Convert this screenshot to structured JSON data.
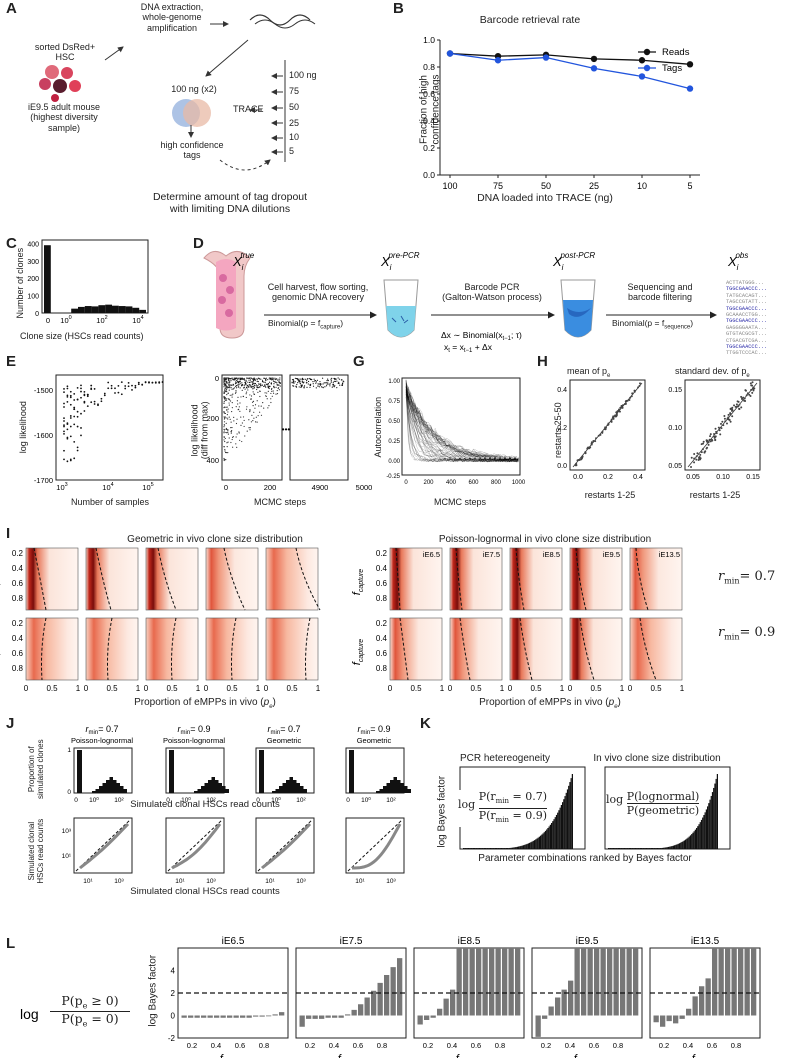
{
  "panels": {
    "A": "A",
    "B": "B",
    "C": "C",
    "D": "D",
    "E": "E",
    "F": "F",
    "G": "G",
    "H": "H",
    "I": "I",
    "J": "J",
    "K": "K",
    "L": "L"
  },
  "A": {
    "sorted": "sorted DsRed+\nHSC",
    "dna": "DNA extraction,\nwhole-genome\namplification",
    "mouse": "iE9.5 adult mouse\n(highest diversity\nsample)",
    "ng100": "100 ng (x2)",
    "trace": "TRACE",
    "hct": "high confidence\ntags",
    "amounts": [
      "100 ng",
      "75",
      "50",
      "25",
      "10",
      "5"
    ],
    "caption": "Determine amount of tag dropout\nwith limiting DNA dilutions"
  },
  "C": {
    "ylabel": "Number of clones",
    "xlabel": "Clone size (HSCs read counts)"
  },
  "D": {
    "step1": "Cell harvest, flow sorting,\ngenomic DNA recovery",
    "binom1": "Binomial(p = f",
    "step2": "Barcode PCR\n(Galton-Watson process)",
    "step3": "Sequencing and\nbarcode filtering",
    "binom3": "Binomial(p = f",
    "seqs": [
      "ACTTATGGG...",
      "TGGCGAACCC...",
      "TATGCACAGT...",
      "TAGCCGTATT...",
      "TGGCGAACCC...",
      "GCAAACCTGG...",
      "TGGCGAACCC...",
      "GAGGGGAATA...",
      "GTGTACGCGT...",
      "CTGACGTCGA...",
      "TGGCGAACCC...",
      "TTGGTCCCAC..."
    ]
  },
  "E": {
    "ylabel": "log likelihood",
    "xlabel": "Number of samples"
  },
  "F": {
    "ylabel": "log likelihood\n(diff from max)",
    "xlabel": "MCMC steps"
  },
  "G": {
    "ylabel": "Autocorrelation",
    "xlabel": "MCMC steps"
  },
  "H": {
    "title1": "mean of  p",
    "title2": "standard dev. of  p",
    "ylabel": "restarts 25-50",
    "xlabel": "restarts 1-25"
  },
  "I": {
    "title_left": "Geometric in vivo clone size distribution",
    "title_right": "Poisson-lognormal in vivo clone size distribution",
    "stages": [
      "iE6.5",
      "iE7.5",
      "iE8.5",
      "iE9.5",
      "iE13.5"
    ],
    "xlabel": "Proportion of eMPPs in vivo",
    "rmin1": "= 0.7",
    "rmin2": "= 0.9"
  },
  "J": {
    "titles": [
      [
        "= 0.7",
        "Poisson-lognormal"
      ],
      [
        "= 0.9",
        "Poisson-lognormal"
      ],
      [
        "= 0.7",
        "Geometric"
      ],
      [
        "= 0.9",
        "Geometric"
      ]
    ],
    "ylabel_top": "Proportion of\nsimulated clones",
    "xlabel_top": "Simulated clonal HSCs read counts",
    "ylabel_bot": "Simulated clonal\nHSCs read counts",
    "xlabel_bot": "Simulated clonal HSCs read counts"
  },
  "K": {
    "title1": "PCR hetereogeneity",
    "title2": "In vivo clone size distribution",
    "ylabel": "log Bayes factor",
    "xlabel": "Parameter combinations ranked by Bayes factor",
    "frac1_num": "P(r",
    "frac1_num_tail": " = 0.7)",
    "frac1_den": "P(r",
    "frac1_den_tail": " = 0.9)",
    "frac2_num": "P(lognormal)",
    "frac2_den": "P(geometric)"
  },
  "L": {
    "titles": [
      "iE6.5",
      "iE7.5",
      "iE8.5",
      "iE9.5",
      "iE13.5"
    ],
    "ylabel": "log Bayes factor",
    "eq_num": "P(p",
    "eq_num_tail": " ≥ 0)",
    "eq_den": "P(p",
    "eq_den_tail": " = 0)"
  },
  "chart_data": [
    {
      "type": "line",
      "title": "Barcode retrieval rate",
      "xlabel": "DNA loaded into TRACE (ng)",
      "ylabel": "Fraction of high\nconfidence tags",
      "categories": [
        "100",
        "75",
        "50",
        "25",
        "10",
        "5"
      ],
      "ylim": [
        0,
        1.0
      ],
      "yticks": [
        "0.0",
        "0.2",
        "0.4",
        "0.6",
        "0.8",
        "1.0"
      ],
      "legend": "top-right",
      "series": [
        {
          "name": "Reads",
          "color": "#111111",
          "values": [
            0.9,
            0.88,
            0.89,
            0.86,
            0.85,
            0.82
          ]
        },
        {
          "name": "Tags",
          "color": "#2255dd",
          "values": [
            0.9,
            0.85,
            0.87,
            0.79,
            0.73,
            0.64
          ]
        }
      ]
    },
    {
      "type": "bar",
      "xticks": [
        "0",
        "10",
        "10",
        "10"
      ],
      "xexp": [
        "",
        "0",
        "2",
        "4"
      ],
      "yticks": [
        "0",
        "100",
        "200",
        "300",
        "400"
      ],
      "ylim": [
        0,
        420
      ],
      "values": [
        390,
        0,
        0,
        0,
        25,
        35,
        40,
        38,
        45,
        48,
        42,
        40,
        38,
        30,
        18
      ]
    },
    {
      "type": "bar",
      "title": "",
      "ylabel": "log Bayes factor",
      "ylim": [
        -2,
        6
      ],
      "yticks": [
        "-2",
        "0",
        "2",
        "4"
      ],
      "xticks": [
        "0.2",
        "0.4",
        "0.6",
        "0.8"
      ],
      "threshold": 2,
      "series": [
        {
          "name": "iE6.5",
          "values": [
            -0.2,
            -0.2,
            -0.2,
            -0.2,
            -0.2,
            -0.2,
            -0.2,
            -0.2,
            -0.2,
            -0.2,
            -0.2,
            -0.1,
            -0.1,
            0,
            0.1,
            0.3
          ]
        },
        {
          "name": "iE7.5",
          "values": [
            -1.0,
            -0.3,
            -0.3,
            -0.3,
            -0.2,
            -0.2,
            -0.2,
            0.1,
            0.5,
            1.0,
            1.6,
            2.2,
            2.9,
            3.6,
            4.3,
            5.1
          ]
        },
        {
          "name": "iE8.5",
          "values": [
            -0.8,
            -0.4,
            -0.2,
            0.6,
            1.5,
            2.3,
            6.0,
            6.0,
            6.0,
            6.0,
            6.0,
            6.0,
            6.0,
            6.0,
            6.0,
            6.0
          ]
        },
        {
          "name": "iE9.5",
          "values": [
            -1.9,
            -0.3,
            0.8,
            1.6,
            2.3,
            3.1,
            6.0,
            6.0,
            6.0,
            6.0,
            6.0,
            6.0,
            6.0,
            6.0,
            6.0,
            6.0
          ]
        },
        {
          "name": "iE13.5",
          "values": [
            -0.6,
            -1.0,
            -0.5,
            -0.7,
            -0.3,
            0.6,
            1.7,
            2.6,
            3.3,
            6.0,
            6.0,
            6.0,
            6.0,
            6.0,
            6.0,
            6.0
          ]
        }
      ]
    }
  ]
}
